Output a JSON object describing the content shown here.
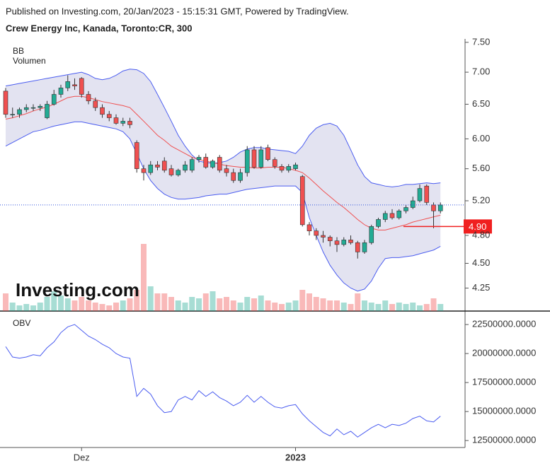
{
  "header": {
    "published": "Published on Investing.com, 20/Jan/2023 - 15:15:31 GMT, Powered by TradingView.",
    "instrument": "Crew Energy Inc, Kanada, Toronto:CR, 300",
    "watermark": "Investing.com"
  },
  "chart_data": [
    {
      "type": "candlestick",
      "labels": [
        "BB",
        "Volumen"
      ],
      "log": true,
      "ylim": [
        4.03,
        7.56
      ],
      "yticks": [
        {
          "value": 4.25,
          "label": "4.25"
        },
        {
          "value": 4.5,
          "label": "4.50"
        },
        {
          "value": 4.8,
          "label": "4.80"
        },
        {
          "value": 5.2,
          "label": "5.20"
        },
        {
          "value": 5.6,
          "label": "5.60"
        },
        {
          "value": 6.0,
          "label": "6.00"
        },
        {
          "value": 6.5,
          "label": "6.50"
        },
        {
          "value": 7.0,
          "label": "7.00"
        },
        {
          "value": 7.5,
          "label": "7.50"
        }
      ],
      "up_color": "#22ab94",
      "down_color": "#f05050",
      "price": {
        "open": [
          6.7,
          6.35,
          6.35,
          6.42,
          6.45,
          6.45,
          6.3,
          6.5,
          6.65,
          6.75,
          6.8,
          6.9,
          6.65,
          6.55,
          6.45,
          6.35,
          6.3,
          6.22,
          6.25,
          5.95,
          5.6,
          5.55,
          5.65,
          5.7,
          5.6,
          5.52,
          5.58,
          5.58,
          5.72,
          5.75,
          5.62,
          5.75,
          5.6,
          5.55,
          5.45,
          5.55,
          5.85,
          5.62,
          5.88,
          5.72,
          5.63,
          5.58,
          5.6,
          5.5,
          4.92,
          4.85,
          4.8,
          4.78,
          4.74,
          4.7,
          4.75,
          4.72,
          4.62,
          4.72,
          4.9,
          4.98,
          5.05,
          5.0,
          5.08,
          5.12,
          5.2,
          5.38,
          5.15,
          5.08
        ],
        "high": [
          6.75,
          6.45,
          6.45,
          6.5,
          6.5,
          6.5,
          6.55,
          6.72,
          6.8,
          6.95,
          6.9,
          6.92,
          6.7,
          6.6,
          6.5,
          6.4,
          6.35,
          6.3,
          6.3,
          5.98,
          5.65,
          5.7,
          5.7,
          5.75,
          5.65,
          5.6,
          5.7,
          5.75,
          5.78,
          5.8,
          5.72,
          5.78,
          5.65,
          5.6,
          5.6,
          5.9,
          5.9,
          5.9,
          5.92,
          5.75,
          5.66,
          5.66,
          5.68,
          5.52,
          4.95,
          4.88,
          4.85,
          4.8,
          4.78,
          4.78,
          4.8,
          4.74,
          4.75,
          4.92,
          5.0,
          5.08,
          5.1,
          5.1,
          5.15,
          5.25,
          5.4,
          5.4,
          5.18,
          5.18
        ],
        "low": [
          6.3,
          6.3,
          6.3,
          6.38,
          6.4,
          6.4,
          6.28,
          6.48,
          6.6,
          6.7,
          6.72,
          6.6,
          6.5,
          6.4,
          6.3,
          6.25,
          6.2,
          6.18,
          6.15,
          5.55,
          5.45,
          5.52,
          5.58,
          5.55,
          5.5,
          5.5,
          5.55,
          5.55,
          5.68,
          5.6,
          5.6,
          5.55,
          5.5,
          5.42,
          5.42,
          5.5,
          5.6,
          5.6,
          5.7,
          5.6,
          5.55,
          5.55,
          5.58,
          4.9,
          4.8,
          4.75,
          4.72,
          4.68,
          4.62,
          4.68,
          4.7,
          4.55,
          4.6,
          4.7,
          4.88,
          4.95,
          4.98,
          4.98,
          5.05,
          5.1,
          5.18,
          5.15,
          4.88,
          5.05
        ],
        "close": [
          6.35,
          6.35,
          6.42,
          6.45,
          6.45,
          6.47,
          6.5,
          6.65,
          6.75,
          6.85,
          6.78,
          6.65,
          6.55,
          6.45,
          6.35,
          6.3,
          6.22,
          6.25,
          6.2,
          5.6,
          5.55,
          5.65,
          5.62,
          5.58,
          5.52,
          5.58,
          5.65,
          5.72,
          5.75,
          5.62,
          5.7,
          5.58,
          5.55,
          5.45,
          5.55,
          5.85,
          5.62,
          5.85,
          5.72,
          5.63,
          5.58,
          5.63,
          5.65,
          4.92,
          4.85,
          4.8,
          4.78,
          4.74,
          4.7,
          4.75,
          4.72,
          4.62,
          4.72,
          4.9,
          4.98,
          5.05,
          5.0,
          5.08,
          5.12,
          5.2,
          5.35,
          5.18,
          5.08,
          5.15
        ]
      },
      "bb": {
        "color": "#4a5cf0",
        "mid_color": "#f05050",
        "fill": "#e3e3f1",
        "upper": [
          6.78,
          6.8,
          6.82,
          6.84,
          6.86,
          6.88,
          6.9,
          6.92,
          6.94,
          6.96,
          6.98,
          7.0,
          6.96,
          6.9,
          6.88,
          6.9,
          6.95,
          7.02,
          7.05,
          7.04,
          6.98,
          6.85,
          6.65,
          6.45,
          6.25,
          6.05,
          5.9,
          5.78,
          5.7,
          5.68,
          5.67,
          5.68,
          5.7,
          5.75,
          5.82,
          5.86,
          5.88,
          5.88,
          5.86,
          5.85,
          5.84,
          5.83,
          5.8,
          5.9,
          6.05,
          6.15,
          6.2,
          6.22,
          6.18,
          6.05,
          5.85,
          5.65,
          5.5,
          5.42,
          5.4,
          5.38,
          5.37,
          5.38,
          5.4,
          5.4,
          5.41,
          5.42,
          5.41,
          5.42
        ],
        "middle": [
          6.28,
          6.3,
          6.33,
          6.36,
          6.4,
          6.43,
          6.46,
          6.5,
          6.55,
          6.6,
          6.62,
          6.62,
          6.6,
          6.57,
          6.54,
          6.52,
          6.5,
          6.48,
          6.45,
          6.35,
          6.25,
          6.15,
          6.05,
          5.98,
          5.9,
          5.85,
          5.8,
          5.75,
          5.72,
          5.7,
          5.68,
          5.66,
          5.64,
          5.63,
          5.62,
          5.62,
          5.61,
          5.61,
          5.62,
          5.62,
          5.62,
          5.6,
          5.58,
          5.55,
          5.48,
          5.4,
          5.32,
          5.25,
          5.18,
          5.12,
          5.05,
          4.98,
          4.92,
          4.88,
          4.86,
          4.86,
          4.88,
          4.9,
          4.92,
          4.95,
          4.97,
          4.99,
          5.01,
          5.03
        ],
        "lower": [
          5.9,
          5.95,
          6.0,
          6.05,
          6.1,
          6.12,
          6.15,
          6.18,
          6.2,
          6.22,
          6.24,
          6.24,
          6.22,
          6.2,
          6.18,
          6.16,
          6.14,
          6.1,
          6.0,
          5.8,
          5.6,
          5.45,
          5.35,
          5.28,
          5.24,
          5.22,
          5.22,
          5.23,
          5.24,
          5.26,
          5.27,
          5.28,
          5.28,
          5.3,
          5.32,
          5.34,
          5.35,
          5.36,
          5.37,
          5.38,
          5.38,
          5.38,
          5.38,
          5.3,
          5.0,
          4.8,
          4.62,
          4.48,
          4.38,
          4.3,
          4.25,
          4.22,
          4.24,
          4.32,
          4.45,
          4.55,
          4.56,
          4.56,
          4.57,
          4.58,
          4.6,
          4.62,
          4.64,
          4.68
        ]
      },
      "volume": [
        250000,
        120000,
        80000,
        100000,
        80000,
        120000,
        200000,
        280000,
        220000,
        180000,
        150000,
        200000,
        150000,
        120000,
        100000,
        80000,
        120000,
        150000,
        180000,
        300000,
        950000,
        350000,
        250000,
        250000,
        200000,
        150000,
        120000,
        200000,
        180000,
        250000,
        280000,
        180000,
        200000,
        150000,
        120000,
        200000,
        180000,
        220000,
        150000,
        120000,
        100000,
        120000,
        150000,
        300000,
        250000,
        200000,
        180000,
        150000,
        150000,
        120000,
        100000,
        250000,
        150000,
        120000,
        100000,
        150000,
        100000,
        120000,
        100000,
        120000,
        80000,
        100000,
        180000,
        100000
      ],
      "price_line": {
        "value": 4.9,
        "label": "4.90",
        "color": "#f02020"
      }
    },
    {
      "type": "line",
      "label": "OBV",
      "color": "#4a5cf0",
      "ylim": [
        11900000,
        23600000
      ],
      "yticks": [
        {
          "value": 12500000,
          "label": "12500000.0000"
        },
        {
          "value": 15000000,
          "label": "15000000.0000"
        },
        {
          "value": 17500000,
          "label": "17500000.0000"
        },
        {
          "value": 20000000,
          "label": "20000000.0000"
        },
        {
          "value": 22500000,
          "label": "22500000.0000"
        }
      ],
      "xticks": [
        {
          "value": 11,
          "label": "Dez"
        },
        {
          "value": 42,
          "label": "2023"
        }
      ],
      "values": [
        20600000,
        19700000,
        19600000,
        19700000,
        19900000,
        19800000,
        20500000,
        21000000,
        21800000,
        22300000,
        22500000,
        22000000,
        21500000,
        21200000,
        20800000,
        20500000,
        20000000,
        19700000,
        19600000,
        16300000,
        17000000,
        16500000,
        15500000,
        14900000,
        15000000,
        16000000,
        16300000,
        16000000,
        16800000,
        16300000,
        16700000,
        16200000,
        15900000,
        15500000,
        15800000,
        16400000,
        15800000,
        16300000,
        15800000,
        15400000,
        15300000,
        15500000,
        15600000,
        14800000,
        14200000,
        13700000,
        13200000,
        12900000,
        13500000,
        13000000,
        13300000,
        12800000,
        13200000,
        13600000,
        13900000,
        13600000,
        13900000,
        13800000,
        14000000,
        14400000,
        14600000,
        14200000,
        14100000,
        14600000
      ]
    }
  ]
}
